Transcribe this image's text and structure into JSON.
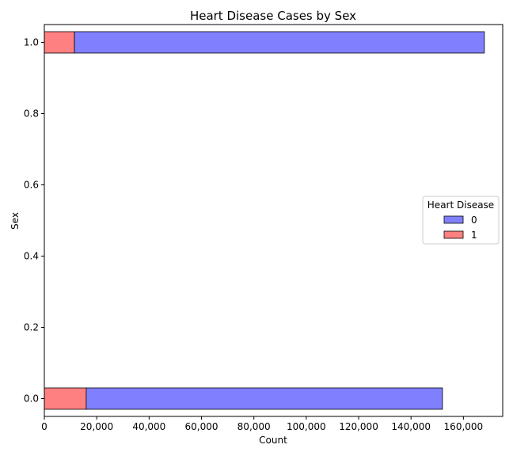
{
  "chart_data": {
    "type": "bar",
    "orientation": "horizontal",
    "stacked": true,
    "title": "Heart Disease Cases by Sex",
    "xlabel": "Count",
    "ylabel": "Sex",
    "xlim": [
      0,
      175000
    ],
    "ylim": [
      -0.05,
      1.05
    ],
    "x_ticks": [
      0,
      20000,
      40000,
      60000,
      80000,
      100000,
      120000,
      140000,
      160000
    ],
    "x_tick_labels": [
      "0",
      "20,000",
      "40,000",
      "60,000",
      "80,000",
      "100,000",
      "120,000",
      "140,000",
      "160,000"
    ],
    "y_ticks": [
      0.0,
      0.2,
      0.4,
      0.6,
      0.8,
      1.0
    ],
    "y_tick_labels": [
      "0.0",
      "0.2",
      "0.4",
      "0.6",
      "0.8",
      "1.0"
    ],
    "categories": [
      0.0,
      1.0
    ],
    "bar_height": 0.06,
    "series": [
      {
        "name": "1",
        "color": "#ff8080",
        "values": [
          16000,
          11500
        ]
      },
      {
        "name": "0",
        "color": "#8080ff",
        "values": [
          136000,
          156500
        ]
      }
    ],
    "legend": {
      "title": "Heart Disease",
      "position": "center-right",
      "entries": [
        {
          "label": "0",
          "color": "#8080ff"
        },
        {
          "label": "1",
          "color": "#ff8080"
        }
      ]
    },
    "grid": false
  }
}
